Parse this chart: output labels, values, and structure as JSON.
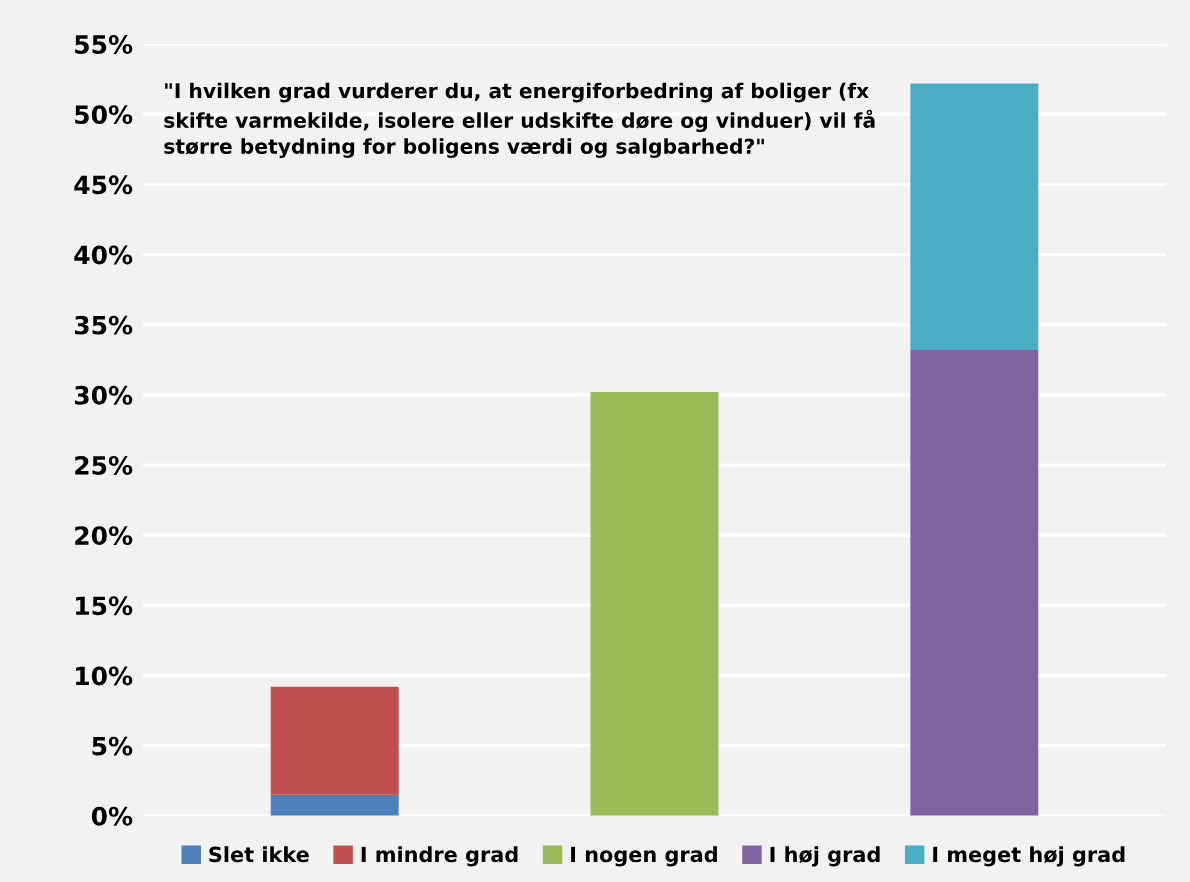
{
  "chart_data": {
    "type": "bar",
    "stacked": true,
    "annotations": [
      "\"I hvilken grad vurderer du, at energiforbedring af boliger (fx\nskifte varmekilde, isolere eller udskifte døre og vinduer) vil få\nstørre betydning for boligens værdi og salgbarhed?\""
    ],
    "categories": [
      null,
      null,
      null
    ],
    "series": [
      {
        "name": "Slet ikke",
        "color": "#4f81bd",
        "values": [
          1.5,
          null,
          null
        ]
      },
      {
        "name": "I mindre grad",
        "color": "#c0504d",
        "values": [
          7.7,
          null,
          null
        ]
      },
      {
        "name": "I nogen grad",
        "color": "#9bbb59",
        "values": [
          null,
          30.2,
          null
        ]
      },
      {
        "name": "I høj grad",
        "color": "#8064a2",
        "values": [
          null,
          null,
          33.2
        ]
      },
      {
        "name": "I meget høj grad",
        "color": "#4bacc6",
        "values": [
          null,
          null,
          19.0
        ]
      }
    ],
    "ylim": [
      0,
      55
    ],
    "yticks": [
      {
        "value": 0,
        "label": "0%"
      },
      {
        "value": 5,
        "label": "5%"
      },
      {
        "value": 10,
        "label": "10%"
      },
      {
        "value": 15,
        "label": "15%"
      },
      {
        "value": 20,
        "label": "20%"
      },
      {
        "value": 25,
        "label": "25%"
      },
      {
        "value": 30,
        "label": "30%"
      },
      {
        "value": 35,
        "label": "35%"
      },
      {
        "value": 40,
        "label": "40%"
      },
      {
        "value": 45,
        "label": "45%"
      },
      {
        "value": 50,
        "label": "50%"
      },
      {
        "value": 55,
        "label": "55%"
      }
    ],
    "grid": "y",
    "legend": "bottom"
  }
}
